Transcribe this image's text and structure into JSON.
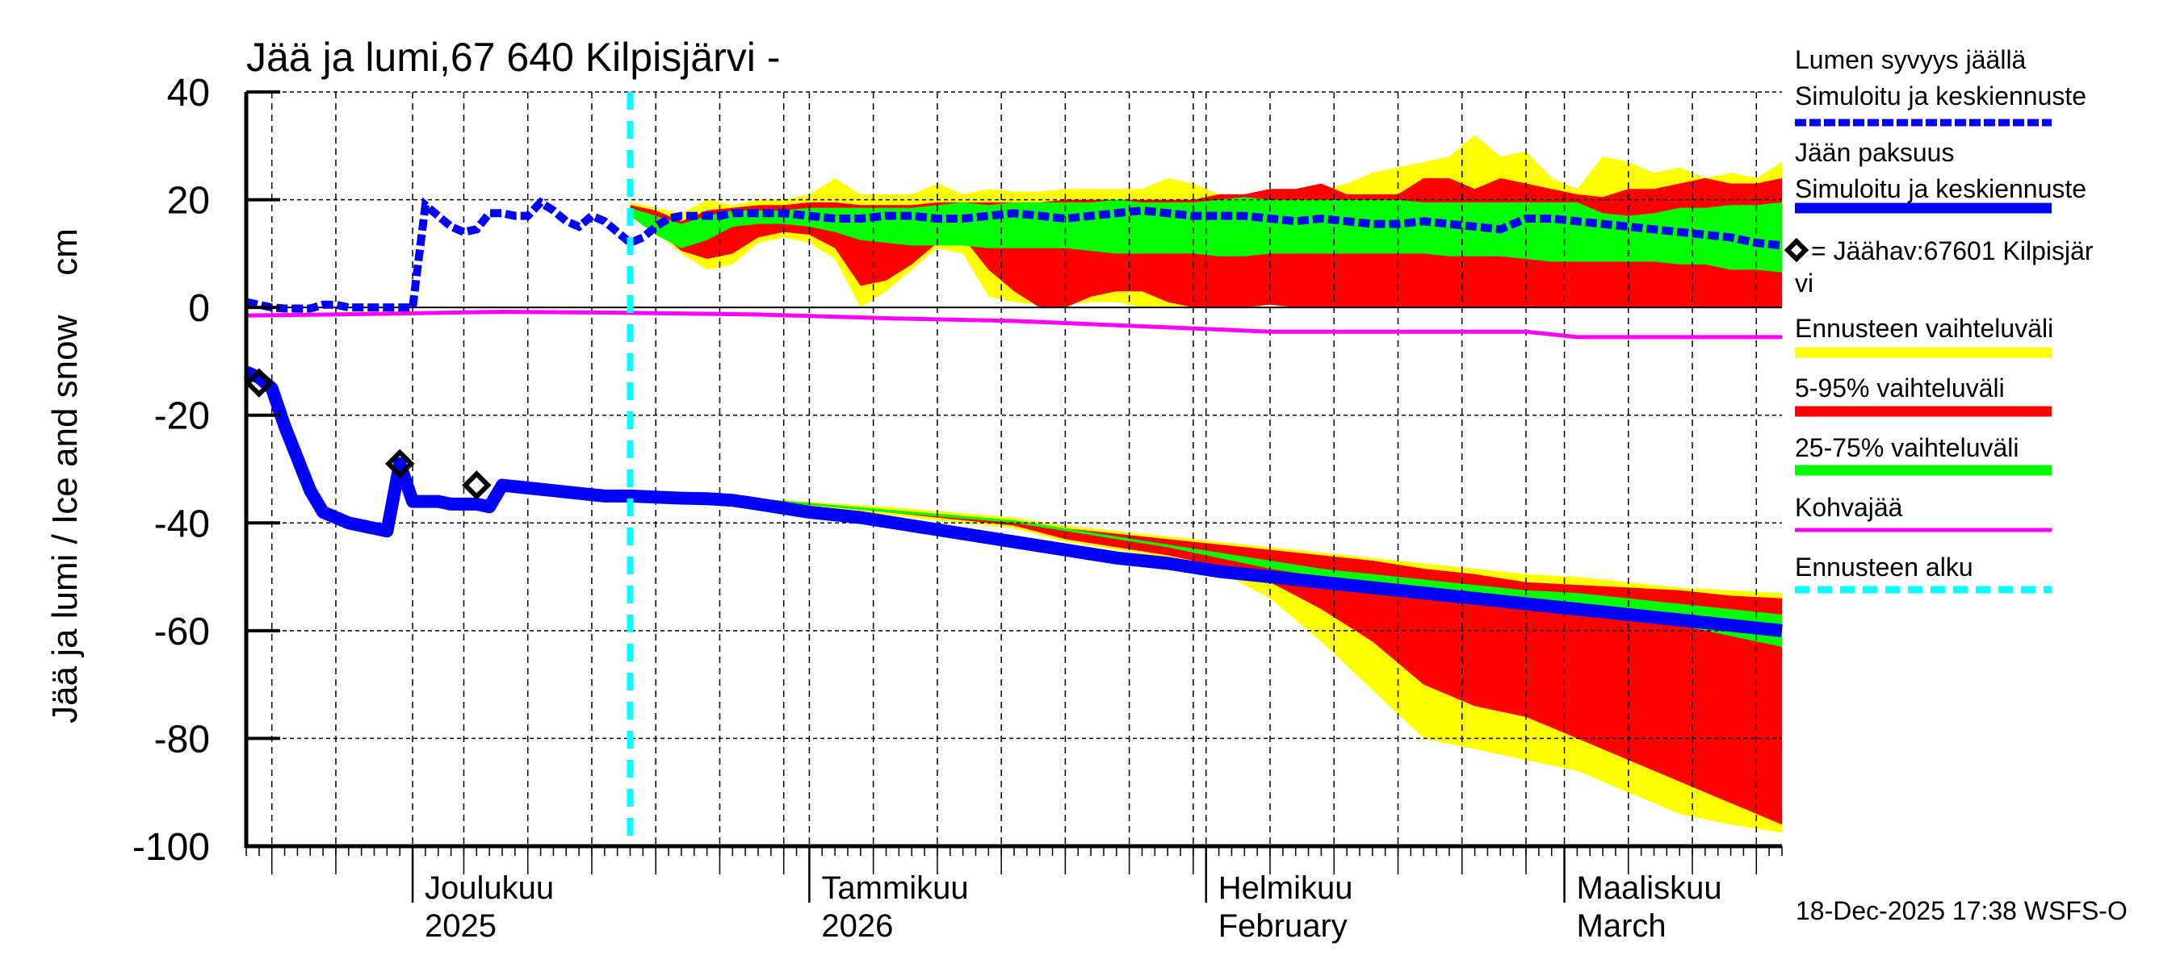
{
  "chart_data": {
    "type": "area",
    "title": "Jää ja lumi,67 640 Kilpisjärvi -",
    "ylabel": "Jää ja lumi / Ice and snow    cm",
    "xlabel": "",
    "ylim": [
      -100,
      40
    ],
    "yticks": [
      40,
      20,
      0,
      -20,
      -40,
      -60,
      -80,
      -100
    ],
    "x_start": "2025-11-18",
    "x_end": "2026-03-18",
    "forecast_start_day": 30,
    "grid": true,
    "month_labels": [
      {
        "day": 13,
        "line1": "Joulukuu",
        "line2": "2025"
      },
      {
        "day": 44,
        "line1": "Tammikuu",
        "line2": "2026"
      },
      {
        "day": 75,
        "line1": "Helmikuu",
        "line2": "February"
      },
      {
        "day": 103,
        "line1": "Maaliskuu",
        "line2": "March"
      }
    ],
    "timestamp": "18-Dec-2025 17:38 WSFS-O",
    "colors": {
      "snow": "#0000ff",
      "ice": "#0000ff",
      "range_full": "#ffff00",
      "range_5_95": "#ff0000",
      "range_25_75": "#00ff00",
      "slush": "#ff00ff",
      "forecast_start": "#00ffff",
      "observation": "#000000"
    },
    "series": [
      {
        "name": "Lumen syvyys jäällä — Simuloitu ja keskiennuste",
        "kind": "snow",
        "x": [
          0,
          1,
          2,
          3,
          4,
          5,
          6,
          7,
          8,
          9,
          10,
          11,
          12,
          13,
          14,
          15,
          16,
          17,
          18,
          19,
          20,
          21,
          22,
          23,
          24,
          25,
          26,
          27,
          28,
          29,
          30,
          31,
          32,
          33,
          34,
          35,
          36,
          37,
          38,
          39,
          40,
          42,
          44,
          46,
          48,
          50,
          52,
          54,
          56,
          58,
          60,
          62,
          64,
          66,
          68,
          70,
          72,
          74,
          76,
          78,
          80,
          82,
          84,
          86,
          88,
          90,
          92,
          94,
          96,
          98,
          100,
          102,
          104,
          106,
          108,
          110,
          112,
          114,
          116,
          118,
          120
        ],
        "y": [
          1,
          0.5,
          0,
          -0.2,
          -0.2,
          -0.2,
          0.5,
          0.5,
          0,
          0,
          0,
          0,
          0,
          0,
          19,
          17,
          15,
          14,
          14.5,
          17.5,
          17.5,
          17,
          17,
          19.5,
          18,
          16,
          15,
          17,
          16,
          14,
          12,
          13,
          15,
          16.5,
          17,
          17,
          17,
          17,
          17.5,
          17.5,
          17.5,
          17.5,
          17,
          16.5,
          16.5,
          17,
          17,
          16.5,
          16.5,
          17,
          17.5,
          17,
          16.5,
          17,
          17.5,
          18,
          17.5,
          17,
          17,
          17,
          16.5,
          16,
          16.5,
          16,
          15.5,
          15.5,
          16,
          15.5,
          15,
          14.5,
          16.5,
          16.5,
          16,
          15.5,
          15,
          14.5,
          14,
          13.5,
          13,
          12,
          11.5
        ]
      },
      {
        "name": "Jään paksuus — Simuloitu ja keskiennuste",
        "kind": "ice",
        "x": [
          0,
          1,
          2,
          3,
          4,
          5,
          6,
          7,
          8,
          9,
          10,
          11,
          12,
          13,
          14,
          15,
          16,
          17,
          18,
          19,
          20,
          22,
          24,
          26,
          28,
          30,
          32,
          34,
          36,
          38,
          40,
          44,
          48,
          52,
          56,
          60,
          64,
          68,
          72,
          76,
          80,
          84,
          88,
          92,
          96,
          100,
          104,
          108,
          112,
          116,
          120
        ],
        "y": [
          -12,
          -13,
          -15,
          -22,
          -28,
          -34,
          -38,
          -39,
          -40,
          -40.5,
          -41,
          -41.5,
          -29,
          -36,
          -36,
          -36,
          -36.5,
          -36.5,
          -36.5,
          -37,
          -33,
          -33.5,
          -34,
          -34.5,
          -35,
          -35,
          -35.2,
          -35.4,
          -35.5,
          -35.8,
          -36.5,
          -38,
          -39,
          -40.5,
          -42,
          -43.5,
          -45,
          -46.5,
          -47.5,
          -49,
          -50,
          -51,
          -52,
          -53,
          -54,
          -55,
          -56,
          -57,
          -58,
          -59,
          -60
        ]
      },
      {
        "name": "Kohvajää",
        "kind": "slush",
        "x": [
          0,
          10,
          20,
          30,
          40,
          50,
          60,
          70,
          80,
          90,
          100,
          104,
          110,
          120
        ],
        "y": [
          -1.5,
          -1.2,
          -0.8,
          -1,
          -1.3,
          -2,
          -2.5,
          -3.5,
          -4.5,
          -4.5,
          -4.5,
          -5.5,
          -5.5,
          -5.5
        ]
      },
      {
        "name": "Jäähav:67601 Kilpisjärvi",
        "kind": "observation",
        "x": [
          1,
          12,
          18
        ],
        "y": [
          -14,
          -29,
          -33
        ]
      },
      {
        "name": "Ennusteen vaihteluväli (snow)",
        "kind": "band",
        "band": "full",
        "x": [
          30,
          32,
          34,
          36,
          38,
          40,
          42,
          44,
          46,
          48,
          50,
          52,
          54,
          56,
          58,
          60,
          62,
          64,
          66,
          68,
          70,
          72,
          74,
          76,
          78,
          80,
          82,
          84,
          86,
          88,
          90,
          92,
          94,
          96,
          98,
          100,
          102,
          104,
          106,
          108,
          110,
          112,
          114,
          116,
          118,
          120
        ],
        "upper": [
          19.5,
          18.5,
          17.5,
          20,
          19,
          20,
          20,
          21,
          24,
          21,
          21,
          21,
          23,
          21,
          22,
          21.5,
          21.5,
          22,
          22,
          22,
          22,
          24,
          23,
          21,
          21,
          22,
          22,
          22,
          23,
          25,
          26,
          27,
          28,
          32,
          28,
          29,
          24,
          22,
          28,
          27,
          25,
          26,
          24,
          25,
          24,
          27
        ],
        "lower": [
          18,
          14,
          10,
          7,
          8,
          12,
          13,
          12,
          9,
          0,
          3,
          7,
          11,
          10,
          2,
          1,
          0.5,
          0.5,
          1,
          1,
          0,
          0,
          0,
          0,
          0.5,
          1,
          0,
          0,
          0,
          0.5,
          0,
          0,
          0,
          0,
          1,
          0.5,
          0,
          0,
          0.5,
          0,
          0,
          1,
          0,
          0,
          0,
          0
        ]
      },
      {
        "name": "5-95% vaihteluväli (snow)",
        "kind": "band",
        "band": "p5_95",
        "x": [
          30,
          32,
          34,
          36,
          38,
          40,
          42,
          44,
          46,
          48,
          50,
          52,
          54,
          56,
          58,
          60,
          62,
          64,
          66,
          68,
          70,
          72,
          74,
          76,
          78,
          80,
          82,
          84,
          86,
          88,
          90,
          92,
          94,
          96,
          98,
          100,
          102,
          104,
          106,
          108,
          110,
          112,
          114,
          116,
          118,
          120
        ],
        "upper": [
          19,
          18,
          16,
          18,
          18.5,
          19,
          19,
          19.5,
          19.5,
          19,
          19,
          19,
          19.5,
          19.5,
          19.5,
          19.5,
          19.5,
          20,
          20,
          20,
          20,
          20,
          20,
          21,
          21,
          22,
          22,
          23,
          21,
          21,
          21,
          24,
          24,
          22,
          24,
          23,
          22,
          21,
          20.5,
          22,
          22,
          23,
          24,
          23,
          23,
          24
        ],
        "lower": [
          17.5,
          14.5,
          10.5,
          9,
          10,
          13,
          14,
          13.5,
          11,
          4,
          5,
          8,
          12,
          13,
          7,
          3,
          0,
          0,
          2,
          3,
          3,
          1,
          0,
          0,
          0,
          0.5,
          0,
          0,
          0,
          0,
          0,
          0,
          0,
          0,
          0,
          0,
          0,
          0,
          0,
          0,
          0,
          0,
          0,
          0,
          0,
          0
        ]
      },
      {
        "name": "25-75% vaihteluväli (snow)",
        "kind": "band",
        "band": "p25_75",
        "x": [
          30,
          32,
          34,
          36,
          38,
          40,
          42,
          44,
          46,
          48,
          50,
          52,
          54,
          56,
          58,
          60,
          62,
          64,
          66,
          68,
          70,
          72,
          74,
          76,
          78,
          80,
          82,
          84,
          86,
          88,
          90,
          92,
          94,
          96,
          98,
          100,
          102,
          104,
          106,
          108,
          110,
          112,
          114,
          116,
          118,
          120
        ],
        "upper": [
          18.5,
          17,
          15.5,
          17,
          18,
          18,
          18,
          18.5,
          18.5,
          18.5,
          18.5,
          18.5,
          19,
          19.5,
          19,
          19.5,
          19.5,
          19.5,
          19.5,
          20,
          19.5,
          19.5,
          19.5,
          20,
          20.5,
          20,
          20,
          20,
          20,
          20,
          20,
          19.5,
          19.5,
          19.5,
          19.5,
          19.5,
          19.5,
          19.5,
          17.5,
          17,
          17.5,
          18.5,
          18.5,
          19,
          19,
          19.5
        ],
        "lower": [
          17,
          13.5,
          11,
          12.5,
          15,
          15.5,
          15.5,
          15,
          14,
          12.5,
          12,
          11.5,
          11.5,
          11.5,
          11,
          11,
          11,
          11,
          10.5,
          10,
          10,
          10,
          10,
          9.5,
          9.5,
          10,
          10,
          10,
          10,
          10,
          10,
          10,
          9.5,
          9.5,
          9.5,
          9,
          8.5,
          8.5,
          8.5,
          8.5,
          8.5,
          8,
          8,
          7,
          7,
          6.5
        ]
      },
      {
        "name": "Ennusteen vaihteluväli (ice)",
        "kind": "band",
        "band": "full",
        "x": [
          30,
          40,
          50,
          60,
          64,
          68,
          72,
          76,
          80,
          84,
          88,
          92,
          96,
          100,
          104,
          108,
          112,
          116,
          120
        ],
        "upper": [
          -35,
          -35.5,
          -37,
          -39,
          -40.5,
          -41.5,
          -42.5,
          -43.5,
          -44.5,
          -45.5,
          -46.5,
          -47.5,
          -48.5,
          -49.5,
          -50,
          -51,
          -52,
          -52.5,
          -53
        ],
        "lower": [
          -35,
          -36,
          -38.5,
          -41,
          -43.5,
          -45,
          -46.5,
          -49,
          -54,
          -62,
          -71,
          -80,
          -82,
          -84,
          -86,
          -90,
          -94,
          -96,
          -97.5
        ]
      },
      {
        "name": "5-95% vaihteluväli (ice)",
        "kind": "band",
        "band": "p5_95",
        "x": [
          30,
          40,
          50,
          60,
          64,
          68,
          72,
          76,
          80,
          84,
          88,
          92,
          96,
          100,
          104,
          108,
          112,
          116,
          120
        ],
        "upper": [
          -35,
          -35.5,
          -37.5,
          -39.5,
          -41,
          -42,
          -43,
          -44,
          -45,
          -46,
          -47,
          -48.5,
          -49.5,
          -51,
          -51.5,
          -52,
          -52.5,
          -53.5,
          -54
        ],
        "lower": [
          -35,
          -35.8,
          -38,
          -40.5,
          -43,
          -44.5,
          -46,
          -48,
          -51,
          -56,
          -62,
          -70,
          -74,
          -76,
          -80,
          -84,
          -88,
          -92,
          -96
        ]
      },
      {
        "name": "25-75% vaihteluväli (ice)",
        "kind": "band",
        "band": "p25_75",
        "x": [
          30,
          40,
          50,
          60,
          64,
          68,
          72,
          76,
          80,
          84,
          88,
          92,
          96,
          100,
          104,
          108,
          112,
          116,
          120
        ],
        "upper": [
          -35,
          -35.5,
          -37.5,
          -39.5,
          -41,
          -42.5,
          -44,
          -45.5,
          -47,
          -48.5,
          -49.5,
          -50.5,
          -51.5,
          -52.5,
          -53,
          -54,
          -55,
          -56,
          -57
        ],
        "lower": [
          -35,
          -35.8,
          -38,
          -40,
          -41.5,
          -43,
          -44.5,
          -46.5,
          -48.5,
          -50,
          -51.5,
          -53,
          -54.5,
          -56,
          -57,
          -58,
          -59,
          -61,
          -63
        ]
      }
    ]
  },
  "legend": {
    "items": [
      {
        "line1": "Lumen syvyys jäällä",
        "line2": "Simuloitu ja keskiennuste",
        "style": "dotted",
        "color": "#0000ff"
      },
      {
        "line1": "Jään paksuus",
        "line2": "Simuloitu ja keskiennuste",
        "style": "solid-thick",
        "color": "#0000ff"
      },
      {
        "line1": "= Jäähav:67601 Kilpisjär",
        "line2": "vi",
        "style": "diamond",
        "color": "#000000"
      },
      {
        "line1": "Ennusteen vaihteluväli",
        "style": "band",
        "color": "#ffff00"
      },
      {
        "line1": "5-95% vaihteluväli",
        "style": "band",
        "color": "#ff0000"
      },
      {
        "line1": "25-75% vaihteluväli",
        "style": "band",
        "color": "#00ff00"
      },
      {
        "line1": "Kohvajää",
        "style": "thin",
        "color": "#ff00ff"
      },
      {
        "line1": "Ennusteen alku",
        "style": "dashed",
        "color": "#00ffff"
      }
    ]
  }
}
